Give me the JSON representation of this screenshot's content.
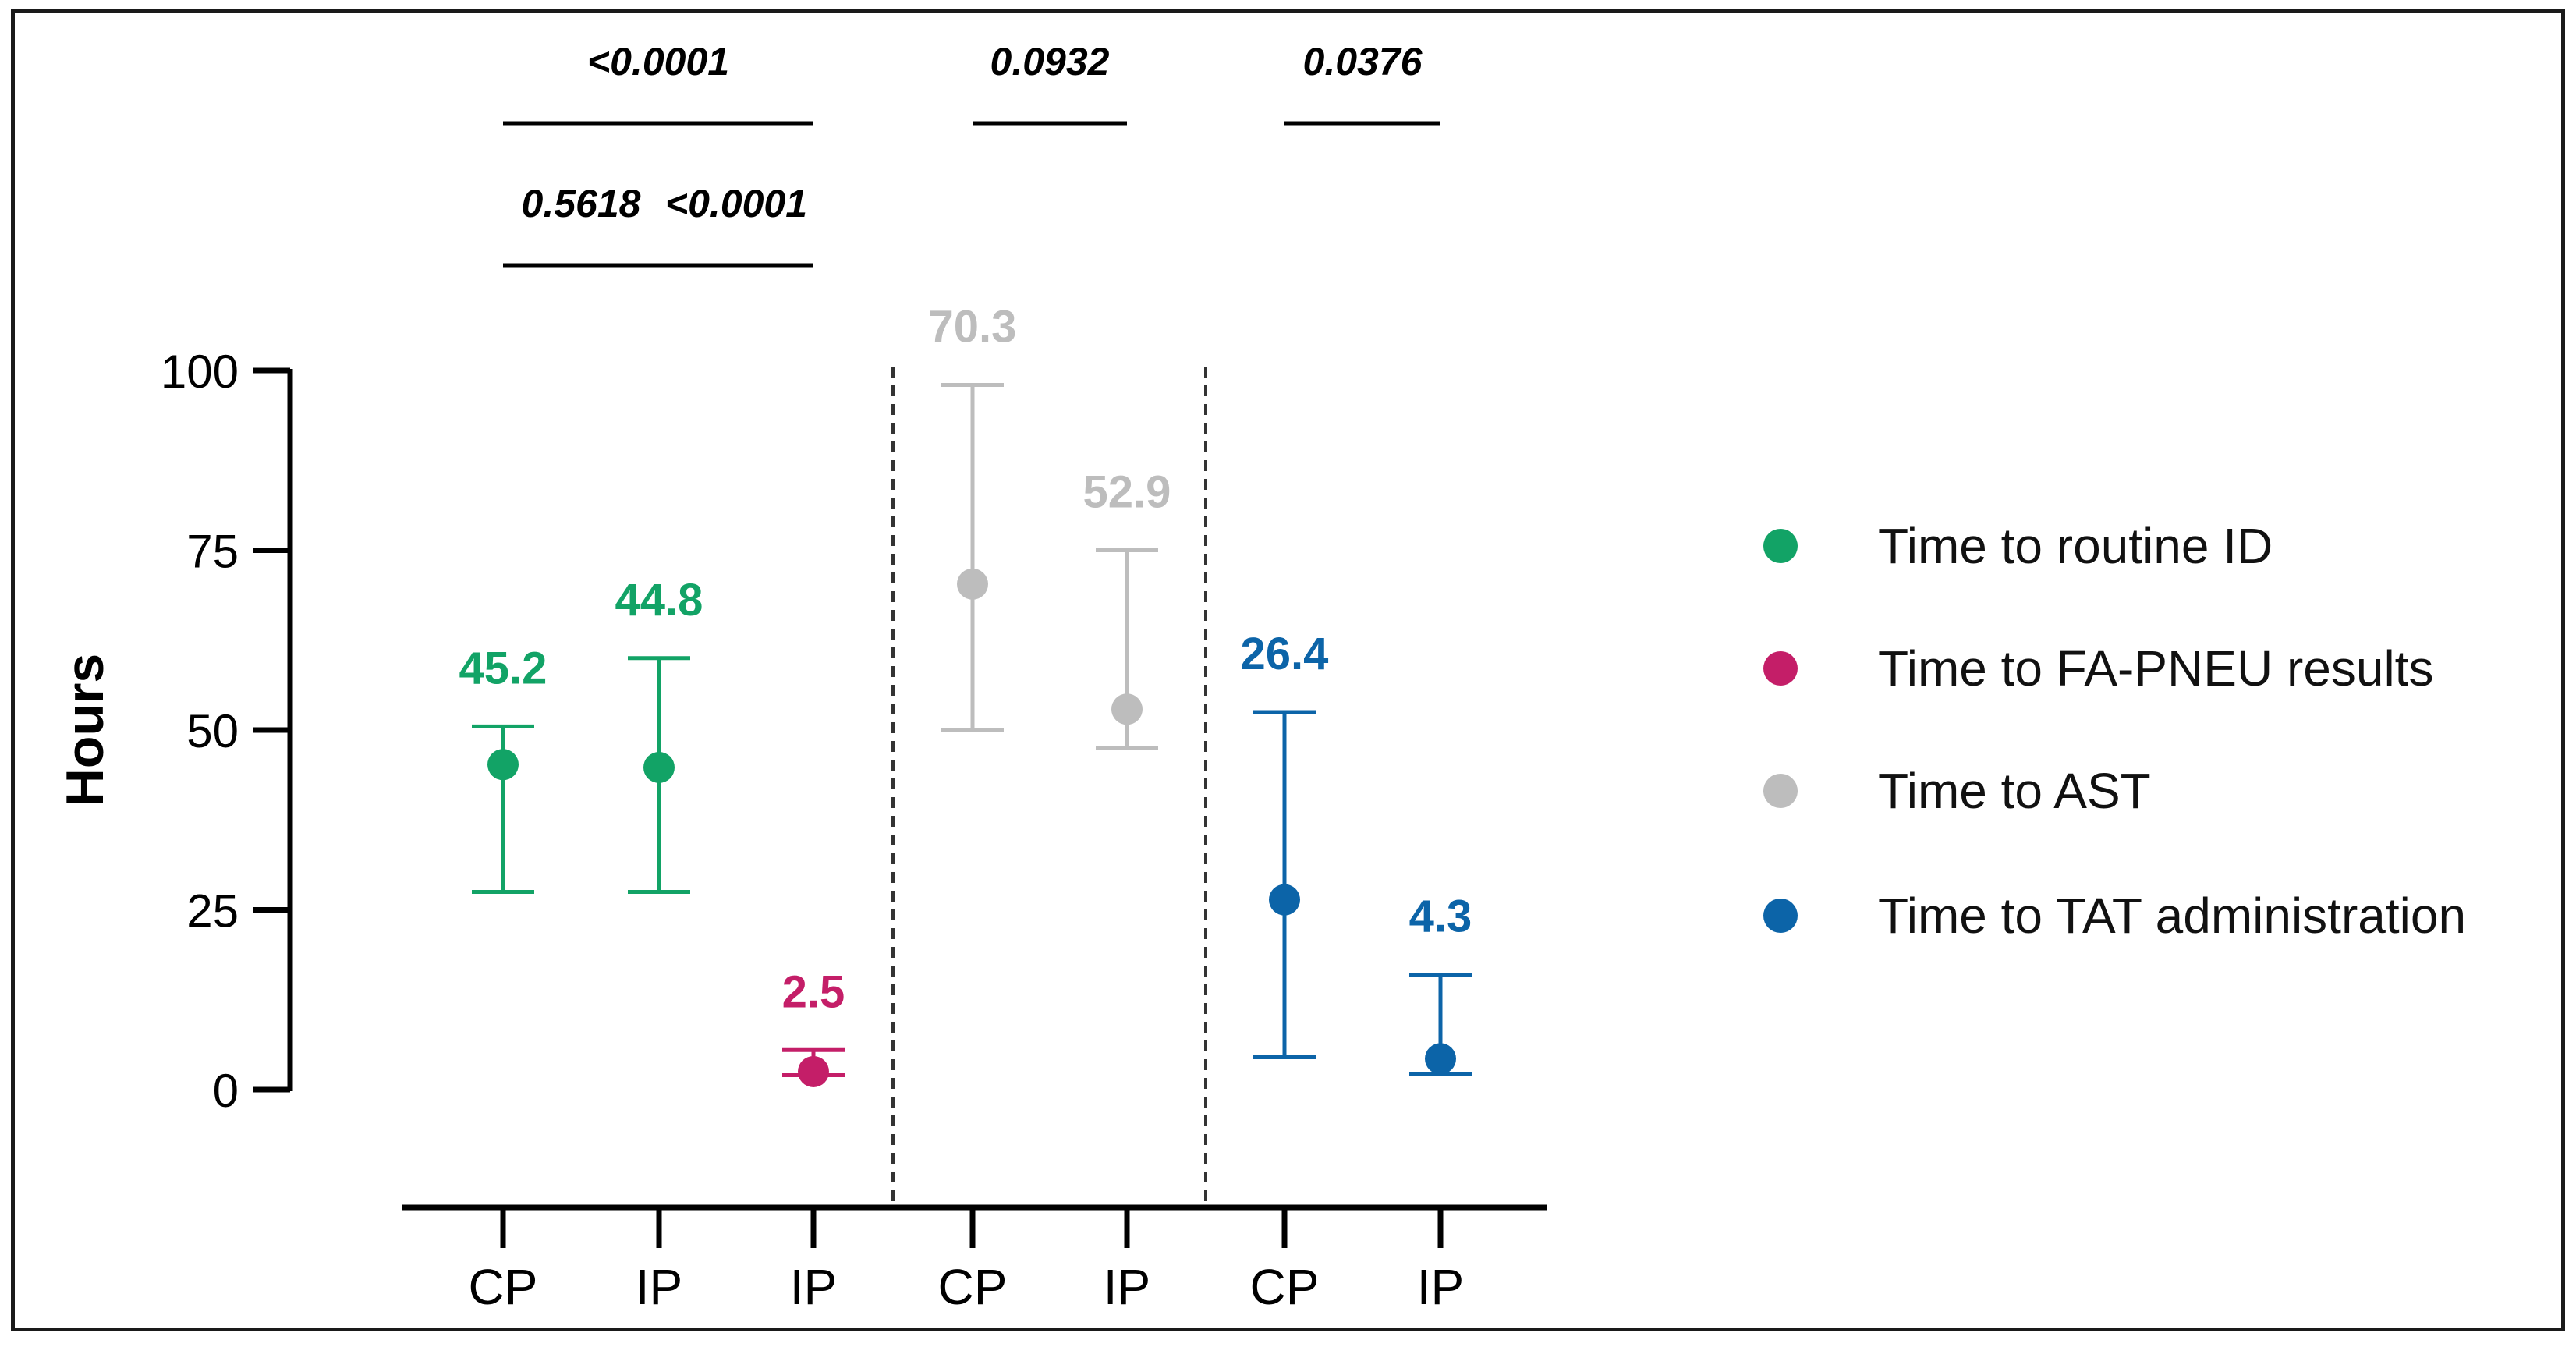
{
  "chart_data": {
    "type": "scatter",
    "ylabel": "Hours",
    "ylim": [
      0,
      100
    ],
    "yticks": [
      0,
      25,
      50,
      75,
      100
    ],
    "categories": [
      "CP",
      "IP",
      "IP",
      "CP",
      "IP",
      "CP",
      "IP"
    ],
    "series": [
      {
        "name": "Time to routine ID",
        "color": "#12a366",
        "points": [
          {
            "cat": 0,
            "value": 45.2,
            "low": 27.5,
            "high": 50.5,
            "label": "45.2"
          },
          {
            "cat": 1,
            "value": 44.8,
            "low": 27.5,
            "high": 60.0,
            "label": "44.8"
          }
        ]
      },
      {
        "name": "Time to FA-PNEU results",
        "color": "#c41e68",
        "points": [
          {
            "cat": 2,
            "value": 2.5,
            "low": 2.0,
            "high": 5.5,
            "label": "2.5"
          }
        ]
      },
      {
        "name": "Time to AST",
        "color": "#bdbdbd",
        "points": [
          {
            "cat": 3,
            "value": 70.3,
            "low": 50.0,
            "high": 98.0,
            "label": "70.3"
          },
          {
            "cat": 4,
            "value": 52.9,
            "low": 47.5,
            "high": 75.0,
            "label": "52.9"
          }
        ]
      },
      {
        "name": "Time to TAT administration",
        "color": "#0c64a8",
        "points": [
          {
            "cat": 5,
            "value": 26.4,
            "low": 4.5,
            "high": 52.5,
            "label": "26.4"
          },
          {
            "cat": 6,
            "value": 4.3,
            "low": 2.2,
            "high": 16.0,
            "label": "4.3"
          }
        ]
      }
    ],
    "comparisons": [
      {
        "from": 0,
        "to": 2,
        "level": 1,
        "p": "<0.0001"
      },
      {
        "from": 0,
        "to": 1,
        "level": 0,
        "p": "0.5618"
      },
      {
        "from": 1,
        "to": 2,
        "level": 0,
        "p": "<0.0001"
      },
      {
        "from": 3,
        "to": 4,
        "level": 1,
        "p": "0.0932"
      },
      {
        "from": 5,
        "to": 6,
        "level": 1,
        "p": "0.0376"
      }
    ],
    "separators_after": [
      2,
      4
    ],
    "legend_position": "right"
  }
}
